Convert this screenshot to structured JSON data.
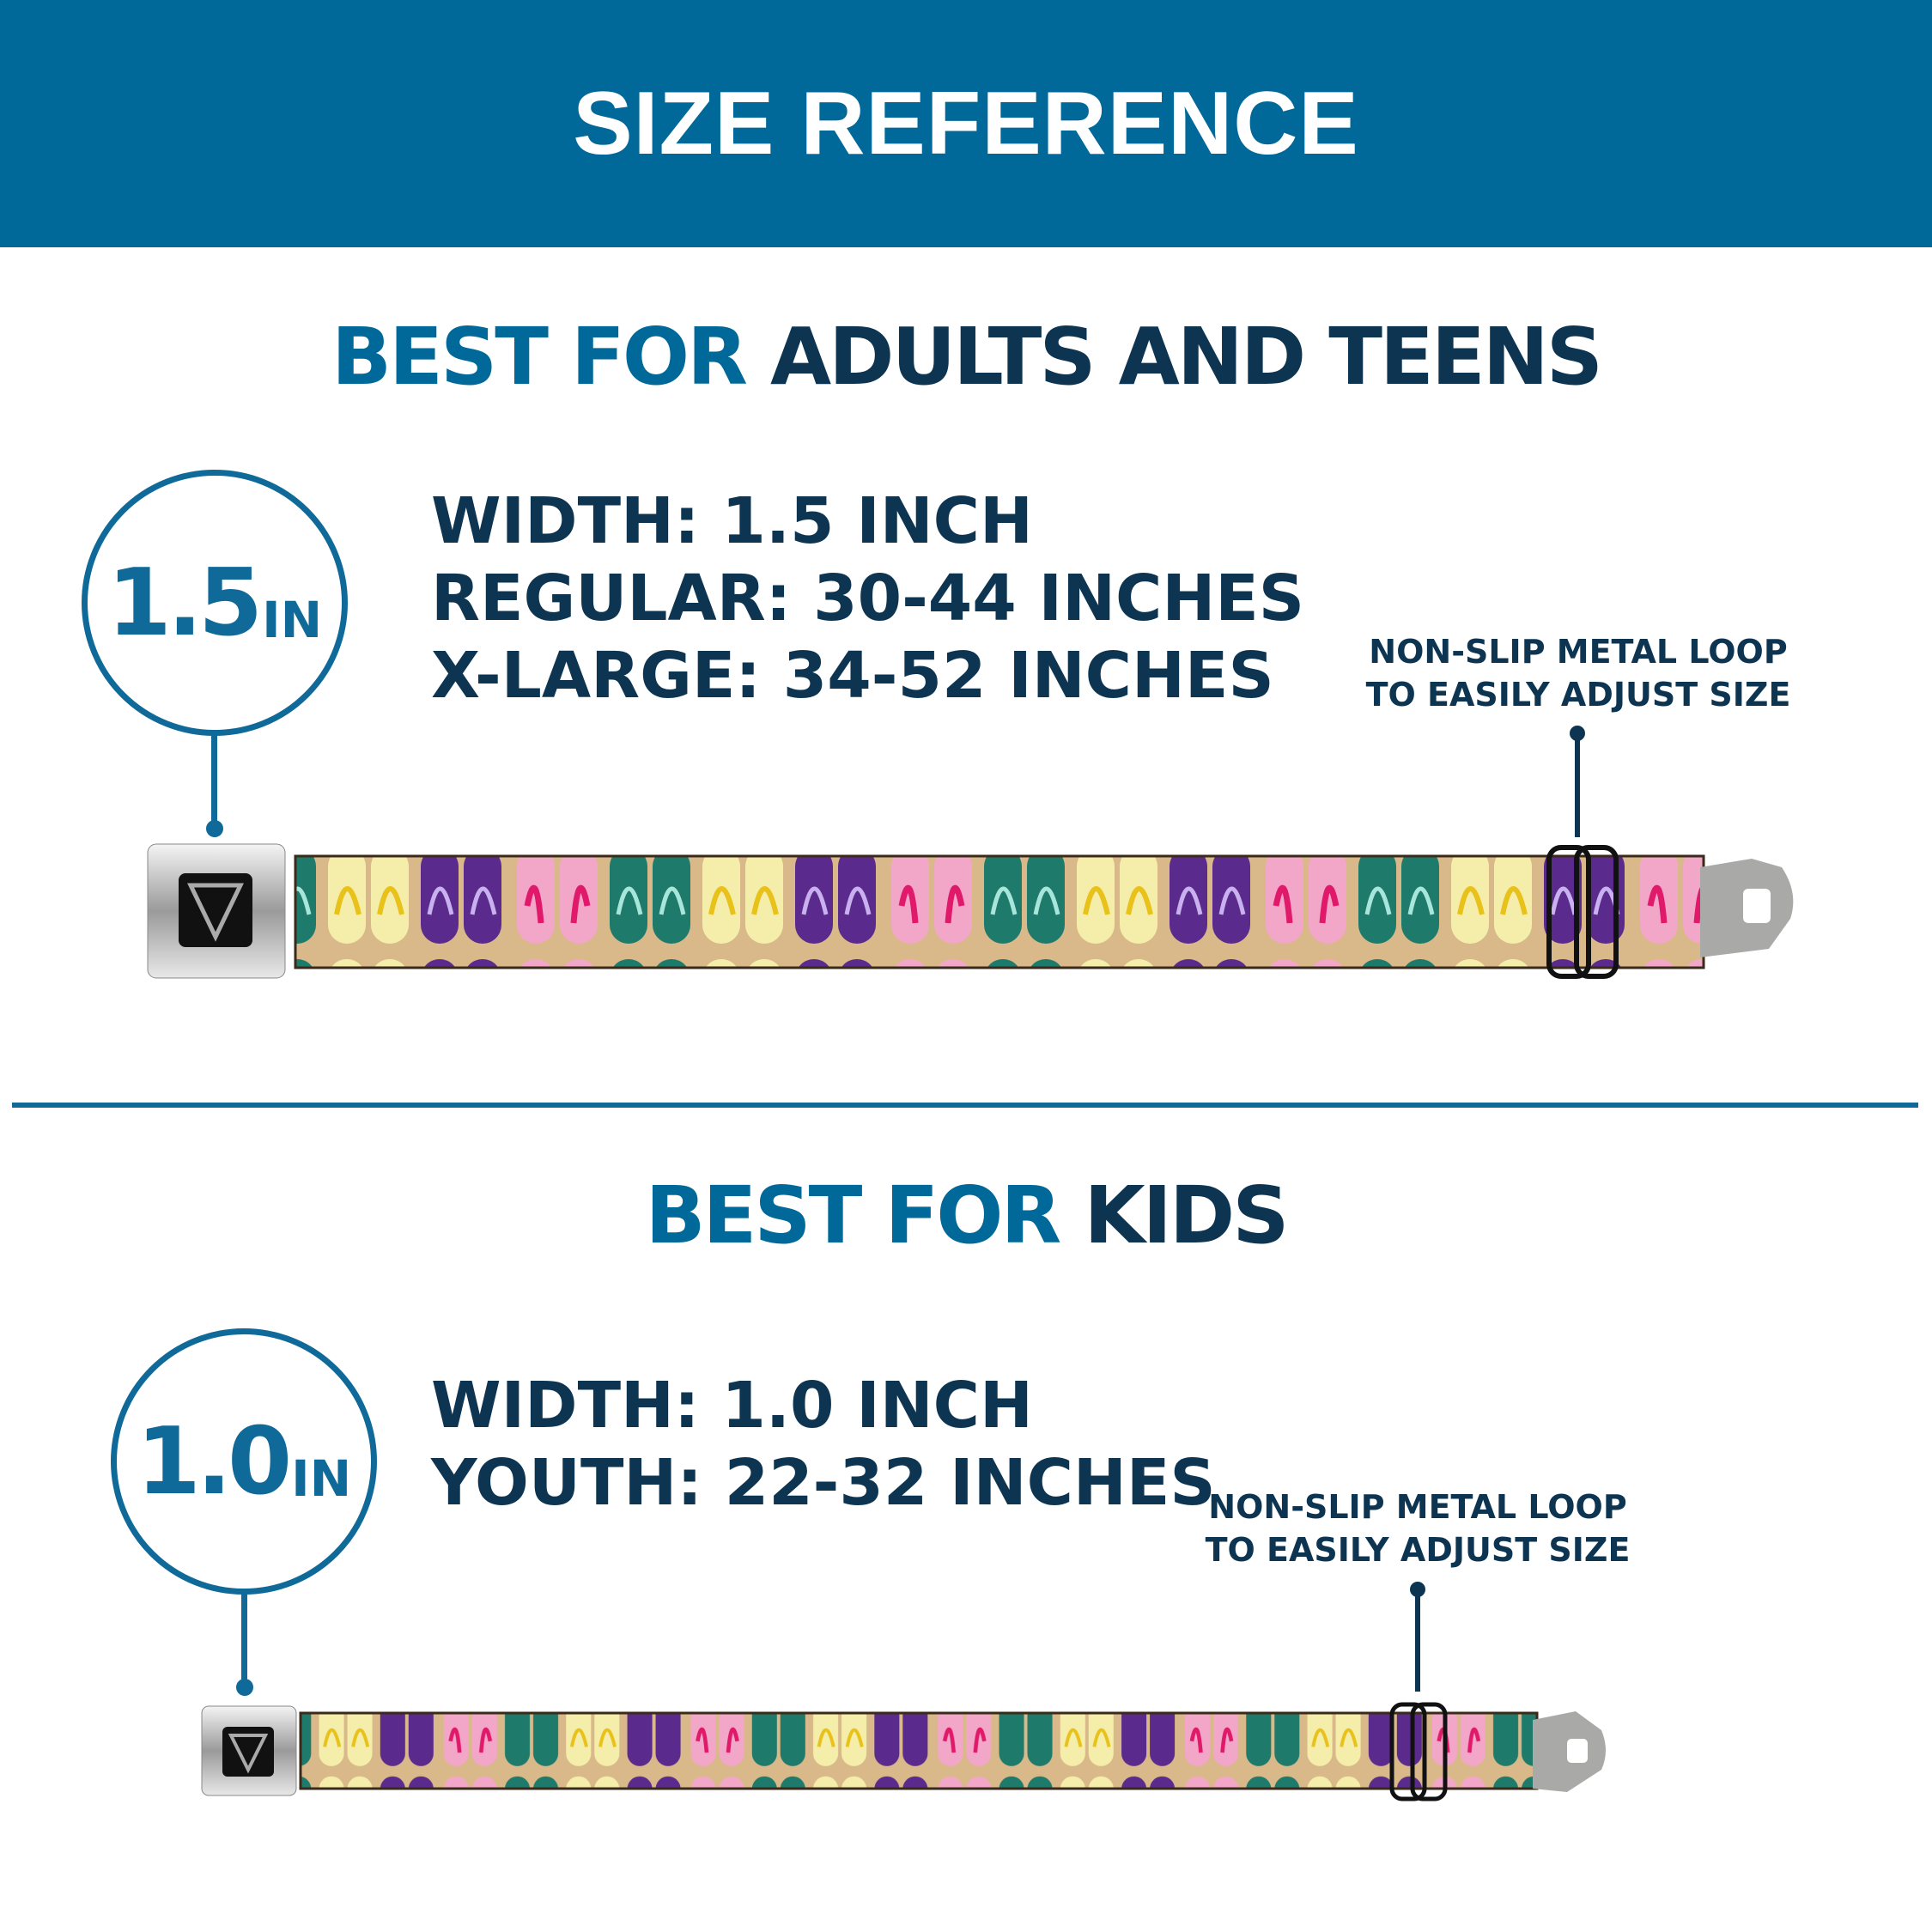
{
  "header": {
    "title": "SIZE REFERENCE"
  },
  "colors": {
    "header_bg": "#006999",
    "accent_blue": "#006999",
    "dark_navy": "#0d3552",
    "strap_tan": "#d9b98a"
  },
  "adults": {
    "heading_highlight": "BEST FOR",
    "heading_rest": "ADULTS AND TEENS",
    "badge_number": "1.5",
    "badge_unit": "IN",
    "specs": [
      "WIDTH: 1.5 INCH",
      "REGULAR: 30-44 INCHES",
      "X-LARGE: 34-52 INCHES"
    ],
    "note": [
      "NON-SLIP METAL LOOP",
      "TO EASILY ADJUST SIZE"
    ]
  },
  "kids": {
    "heading_highlight": "BEST FOR",
    "heading_rest": "KIDS",
    "badge_number": "1.0",
    "badge_unit": "IN",
    "specs": [
      "WIDTH: 1.0 INCH",
      "YOUTH: 22-32 INCHES"
    ],
    "note": [
      "NON-SLIP METAL LOOP",
      "TO EASILY ADJUST SIZE"
    ]
  },
  "belt_pattern": {
    "name": "flip-flops",
    "colors": [
      "#f2a6c8",
      "#1e7a6a",
      "#f5eeaa",
      "#5a2a8c"
    ]
  }
}
